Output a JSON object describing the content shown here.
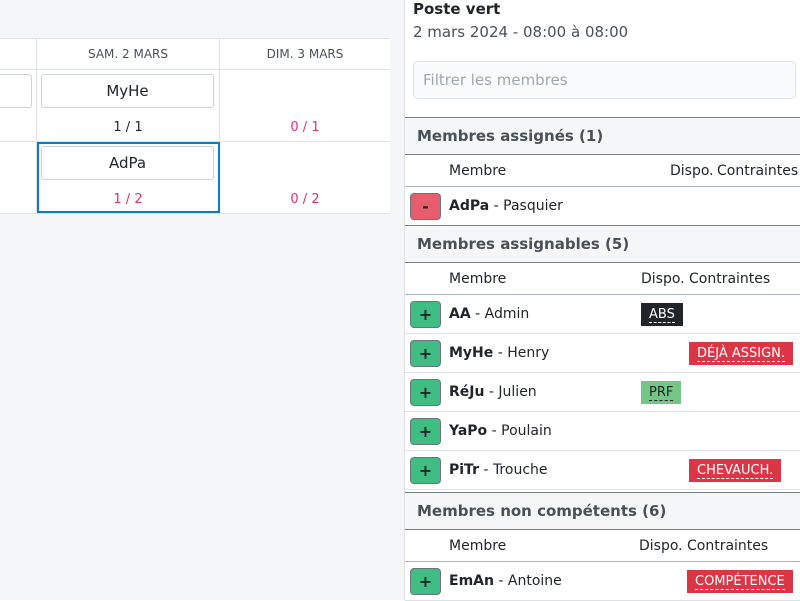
{
  "calendar": {
    "columns": [
      "SAM. 2 MARS",
      "DIM. 3 MARS"
    ],
    "rows": [
      {
        "cells": [
          {
            "chip": "MyHe",
            "count": "1 / 1",
            "status": "ok"
          },
          {
            "chip": null,
            "count": "0 / 1",
            "status": "bad"
          }
        ]
      },
      {
        "cells": [
          {
            "chip": "AdPa",
            "count": "1 / 2",
            "status": "bad",
            "selected": true
          },
          {
            "chip": null,
            "count": "0 / 2",
            "status": "bad"
          }
        ]
      }
    ]
  },
  "panel": {
    "title": "Poste vert",
    "subtitle": "2 mars 2024 - 08:00 à 08:00",
    "filter_placeholder": "Filtrer les membres",
    "col_member": "Membre",
    "col_dispo": "Dispo.",
    "col_constraints": "Contraintes",
    "sections": [
      {
        "title": "Membres assignés (1)",
        "members": [
          {
            "code": "AdPa",
            "name": "Pasquier",
            "action": "-"
          }
        ]
      },
      {
        "title": "Membres assignables (5)",
        "members": [
          {
            "code": "AA",
            "name": "Admin",
            "action": "+",
            "dispo": "ABS",
            "dispo_color": "#212529"
          },
          {
            "code": "MyHe",
            "name": "Henry",
            "action": "+",
            "constraint": "DÉJÀ ASSIGN."
          },
          {
            "code": "RéJu",
            "name": "Julien",
            "action": "+",
            "dispo": "PRF",
            "dispo_color": "#75c686"
          },
          {
            "code": "YaPo",
            "name": "Poulain",
            "action": "+"
          },
          {
            "code": "PiTr",
            "name": "Trouche",
            "action": "+",
            "constraint": "CHEVAUCH."
          }
        ]
      },
      {
        "title": "Membres non compétents (6)",
        "members": [
          {
            "code": "EmAn",
            "name": "Antoine",
            "action": "+",
            "constraint": "COMPÉTENCE"
          }
        ]
      }
    ]
  },
  "colors": {
    "success": "#3fbd82",
    "danger": "#dc3545",
    "selected": "#0a7cc0"
  }
}
